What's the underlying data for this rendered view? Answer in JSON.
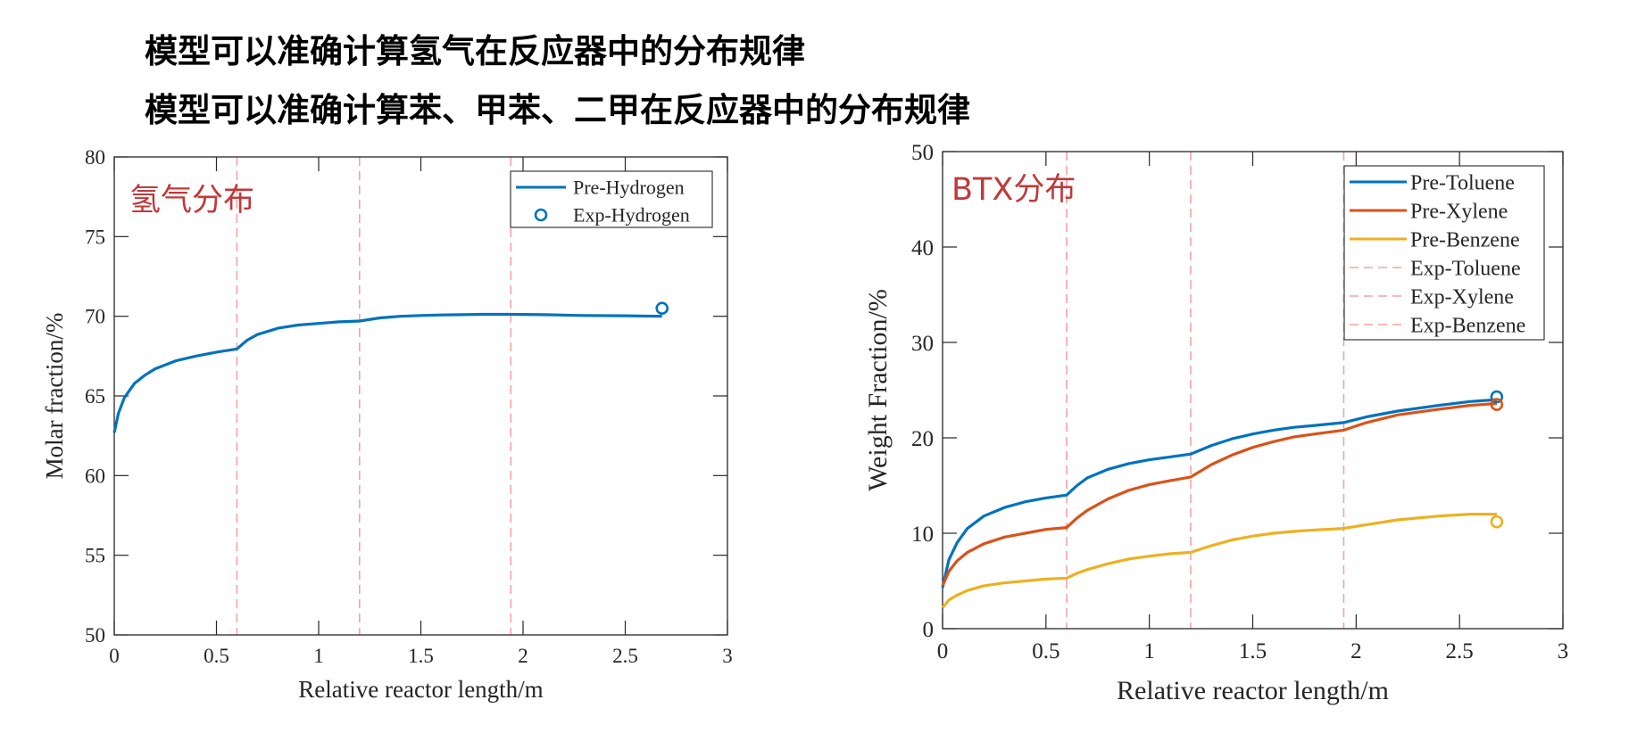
{
  "headlines": [
    "模型可以准确计算氢气在反应器中的分布规律",
    "模型可以准确计算苯、甲苯、二甲在反应器中的分布规律"
  ],
  "chart_data": [
    {
      "type": "line",
      "annotation": "氢气分布",
      "annotation_color": "#c0393b",
      "xlabel": "Relative reactor length/m",
      "ylabel": "Molar fraction/%",
      "xlim": [
        0,
        3
      ],
      "ylim": [
        50,
        80
      ],
      "xticks": [
        0,
        0.5,
        1,
        1.5,
        2,
        2.5,
        3
      ],
      "xtick_labels": [
        "0",
        "0.5",
        "1",
        "1.5",
        "2",
        "2.5",
        "3"
      ],
      "yticks": [
        50,
        55,
        60,
        65,
        70,
        75,
        80
      ],
      "ytick_labels": [
        "50",
        "55",
        "60",
        "65",
        "70",
        "75",
        "80"
      ],
      "grid": false,
      "legend_position": "top-right",
      "bed_boundaries": [
        0.6,
        1.2,
        1.94
      ],
      "series": [
        {
          "name": "Pre-Hydrogen",
          "color": "#0072BD",
          "x": [
            0,
            0.02,
            0.05,
            0.1,
            0.15,
            0.2,
            0.3,
            0.4,
            0.5,
            0.6,
            0.65,
            0.7,
            0.8,
            0.9,
            1.0,
            1.1,
            1.2,
            1.3,
            1.4,
            1.5,
            1.6,
            1.7,
            1.8,
            1.94,
            2.1,
            2.3,
            2.5,
            2.68
          ],
          "y": [
            62.7,
            63.9,
            64.9,
            65.8,
            66.3,
            66.7,
            67.2,
            67.5,
            67.75,
            67.95,
            68.5,
            68.85,
            69.25,
            69.45,
            69.55,
            69.65,
            69.7,
            69.9,
            70.0,
            70.05,
            70.08,
            70.1,
            70.12,
            70.12,
            70.1,
            70.05,
            70.03,
            70.0
          ]
        }
      ],
      "experimental": [
        {
          "name": "Exp-Hydrogen",
          "color": "#0072BD",
          "x": 2.68,
          "y": 70.5
        }
      ]
    },
    {
      "type": "line",
      "annotation": "BTX分布",
      "annotation_color": "#c0393b",
      "xlabel": "Relative reactor length/m",
      "ylabel": "Weight Fraction/%",
      "xlim": [
        0,
        3
      ],
      "ylim": [
        0,
        50
      ],
      "xticks": [
        0,
        0.5,
        1,
        1.5,
        2,
        2.5,
        3
      ],
      "xtick_labels": [
        "0",
        "0.5",
        "1",
        "1.5",
        "2",
        "2.5",
        "3"
      ],
      "yticks": [
        0,
        10,
        20,
        30,
        40,
        50
      ],
      "ytick_labels": [
        "0",
        "10",
        "20",
        "30",
        "40",
        "50"
      ],
      "grid": false,
      "legend_position": "top-right",
      "bed_boundaries": [
        0.6,
        1.2,
        1.94
      ],
      "series": [
        {
          "name": "Pre-Toluene",
          "color": "#0072BD",
          "x": [
            0,
            0.03,
            0.07,
            0.12,
            0.2,
            0.3,
            0.4,
            0.5,
            0.6,
            0.65,
            0.7,
            0.8,
            0.9,
            1.0,
            1.1,
            1.2,
            1.3,
            1.4,
            1.5,
            1.6,
            1.7,
            1.8,
            1.94,
            2.05,
            2.2,
            2.4,
            2.55,
            2.68
          ],
          "y": [
            4.3,
            7.2,
            9.0,
            10.5,
            11.8,
            12.7,
            13.3,
            13.7,
            14.0,
            15.0,
            15.8,
            16.7,
            17.3,
            17.7,
            18.0,
            18.3,
            19.2,
            19.9,
            20.4,
            20.8,
            21.1,
            21.3,
            21.6,
            22.2,
            22.8,
            23.4,
            23.8,
            24.0
          ]
        },
        {
          "name": "Pre-Xylene",
          "color": "#D95319",
          "x": [
            0,
            0.03,
            0.07,
            0.12,
            0.2,
            0.3,
            0.4,
            0.5,
            0.6,
            0.65,
            0.7,
            0.8,
            0.9,
            1.0,
            1.1,
            1.2,
            1.3,
            1.4,
            1.5,
            1.6,
            1.7,
            1.8,
            1.94,
            2.05,
            2.2,
            2.4,
            2.55,
            2.68
          ],
          "y": [
            4.5,
            6.0,
            7.1,
            8.0,
            8.9,
            9.6,
            10.0,
            10.4,
            10.6,
            11.6,
            12.4,
            13.6,
            14.5,
            15.1,
            15.5,
            15.9,
            17.2,
            18.2,
            19.0,
            19.6,
            20.1,
            20.4,
            20.8,
            21.6,
            22.4,
            23.0,
            23.4,
            23.6
          ]
        },
        {
          "name": "Pre-Benzene",
          "color": "#EDB120",
          "x": [
            0,
            0.03,
            0.07,
            0.12,
            0.2,
            0.3,
            0.4,
            0.5,
            0.6,
            0.65,
            0.7,
            0.8,
            0.9,
            1.0,
            1.1,
            1.2,
            1.3,
            1.4,
            1.5,
            1.6,
            1.7,
            1.8,
            1.94,
            2.05,
            2.2,
            2.4,
            2.55,
            2.68
          ],
          "y": [
            2.2,
            3.0,
            3.5,
            4.0,
            4.5,
            4.8,
            5.0,
            5.2,
            5.3,
            5.8,
            6.2,
            6.8,
            7.3,
            7.6,
            7.85,
            8.0,
            8.7,
            9.3,
            9.7,
            10.0,
            10.2,
            10.35,
            10.5,
            10.9,
            11.4,
            11.8,
            12.0,
            12.0
          ]
        }
      ],
      "experimental": [
        {
          "name": "Exp-Toluene",
          "color": "#0072BD",
          "x": 2.68,
          "y": 24.3
        },
        {
          "name": "Exp-Xylene",
          "color": "#D95319",
          "x": 2.68,
          "y": 23.5
        },
        {
          "name": "Exp-Benzene",
          "color": "#EDB120",
          "x": 2.68,
          "y": 11.2
        }
      ]
    }
  ]
}
